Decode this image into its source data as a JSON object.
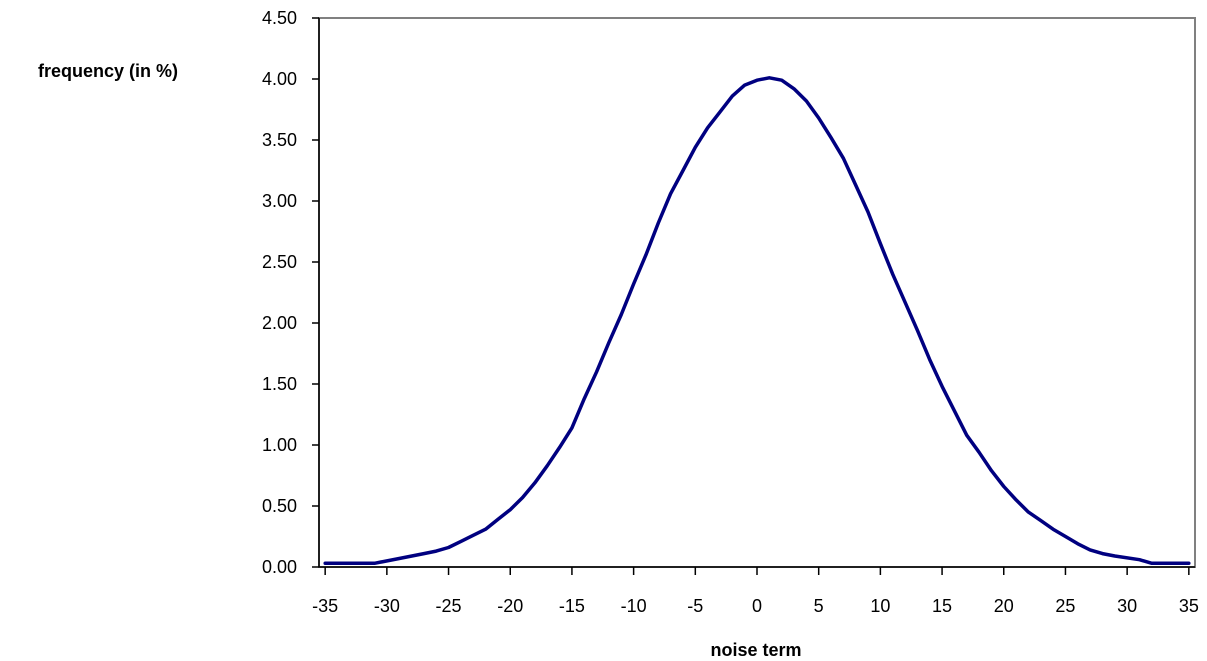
{
  "chart_data": {
    "type": "line",
    "title": "",
    "xlabel": "noise term",
    "ylabel": "frequency (in %)",
    "xlim": [
      -35.5,
      35.5
    ],
    "ylim": [
      0,
      4.5
    ],
    "x_ticks": [
      "-35",
      "-30",
      "-25",
      "-20",
      "-15",
      "-10",
      "-5",
      "0",
      "5",
      "10",
      "15",
      "20",
      "25",
      "30",
      "35"
    ],
    "y_ticks": [
      "0.00",
      "0.50",
      "1.00",
      "1.50",
      "2.00",
      "2.50",
      "3.00",
      "3.50",
      "4.00",
      "4.50"
    ],
    "grid": false,
    "legend": "none",
    "series": [
      {
        "color": "#000080",
        "x": [
          -35,
          -31,
          -29,
          -27,
          -26,
          -25,
          -24,
          -23,
          -22,
          -21,
          -20,
          -19,
          -18,
          -17,
          -16,
          -15,
          -14,
          -13,
          -12,
          -11,
          -10,
          -9,
          -8,
          -7,
          -6,
          -5,
          -4,
          -3,
          -2,
          -1,
          0,
          1,
          2,
          3,
          4,
          5,
          6,
          7,
          8,
          9,
          10,
          11,
          12,
          13,
          14,
          15,
          16,
          17,
          18,
          19,
          20,
          21,
          22,
          23,
          24,
          25,
          26,
          27,
          28,
          29,
          31,
          32,
          33,
          35
        ],
        "y": [
          0.03,
          0.03,
          0.07,
          0.11,
          0.13,
          0.16,
          0.21,
          0.26,
          0.31,
          0.39,
          0.47,
          0.57,
          0.69,
          0.83,
          0.98,
          1.14,
          1.38,
          1.6,
          1.84,
          2.07,
          2.32,
          2.56,
          2.82,
          3.06,
          3.25,
          3.44,
          3.6,
          3.73,
          3.86,
          3.95,
          3.99,
          4.01,
          3.99,
          3.92,
          3.82,
          3.68,
          3.52,
          3.35,
          3.13,
          2.91,
          2.65,
          2.4,
          2.17,
          1.94,
          1.7,
          1.48,
          1.28,
          1.08,
          0.94,
          0.79,
          0.66,
          0.55,
          0.45,
          0.38,
          0.31,
          0.25,
          0.19,
          0.14,
          0.11,
          0.09,
          0.06,
          0.03,
          0.03,
          0.03
        ]
      }
    ]
  }
}
